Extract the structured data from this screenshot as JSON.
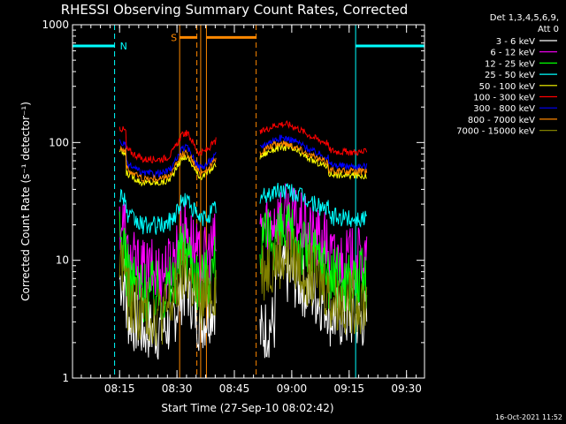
{
  "chart_data": {
    "type": "line",
    "title": "RHESSI Observing Summary Count Rates, Corrected",
    "xlabel": "Start Time (27-Sep-10 08:02:42)",
    "ylabel": "Corrected Count Rate (s⁻¹ detector⁻¹)",
    "yscale": "log",
    "ylim": [
      1,
      1000
    ],
    "xlim_min": [
      5,
      97
    ],
    "x_ticks": [
      {
        "t": 17.3,
        "label": "08:15"
      },
      {
        "t": 32.3,
        "label": "08:30"
      },
      {
        "t": 47.3,
        "label": "08:45"
      },
      {
        "t": 62.3,
        "label": "09:00"
      },
      {
        "t": 77.3,
        "label": "09:15"
      },
      {
        "t": 92.3,
        "label": "09:30"
      }
    ],
    "y_ticks": [
      {
        "v": 1,
        "label": "1"
      },
      {
        "v": 10,
        "label": "10"
      },
      {
        "v": 100,
        "label": "100"
      },
      {
        "v": 1000,
        "label": "1000"
      }
    ],
    "legend_header": [
      "Det 1,3,4,5,6,9,",
      "Att 0"
    ],
    "legend_position": "top-right",
    "timestamp": "16-Oct-2021 11:52",
    "series": [
      {
        "name": "3 - 6 keV",
        "color": "#ffffff",
        "base": 4.0,
        "gap_drop": true
      },
      {
        "name": "6 - 12 keV",
        "color": "#ff00ff",
        "base": 12.5
      },
      {
        "name": "12 - 25 keV",
        "color": "#00ff00",
        "base": 8.5
      },
      {
        "name": "25 - 50 keV",
        "color": "#00ffff",
        "base": 26
      },
      {
        "name": "50 - 100 keV",
        "color": "#ffff00",
        "base": 60
      },
      {
        "name": "100 - 300 keV",
        "color": "#ff0000",
        "base": 95
      },
      {
        "name": "300 - 800 keV",
        "color": "#0000ff",
        "base": 72
      },
      {
        "name": "800 - 7000 keV",
        "color": "#ff8800",
        "base": 65
      },
      {
        "name": "7000 - 15000 keV",
        "color": "#808000",
        "base": 5.5
      }
    ],
    "annotations": [
      {
        "type": "bar",
        "label": "N",
        "color": "#00ffff",
        "segments": [
          [
            5,
            16
          ],
          [
            79,
            97
          ]
        ],
        "level": 660
      },
      {
        "type": "bar",
        "label": "S",
        "color": "#ff8800",
        "segments": [
          [
            33,
            37.5
          ],
          [
            40,
            53
          ]
        ],
        "level": 780
      },
      {
        "type": "vline",
        "color": "#00ffff",
        "dashed": false,
        "t": [
          5,
          79
        ]
      },
      {
        "type": "vline",
        "color": "#00ffff",
        "dashed": true,
        "t": [
          16,
          97
        ]
      },
      {
        "type": "vline",
        "color": "#ff8800",
        "dashed": false,
        "t": [
          33,
          38.5,
          40
        ]
      },
      {
        "type": "vline",
        "color": "#ff8800",
        "dashed": true,
        "t": [
          37.5,
          53
        ]
      }
    ],
    "data_segments": [
      [
        17.3,
        42.5
      ],
      [
        54,
        82
      ]
    ]
  }
}
